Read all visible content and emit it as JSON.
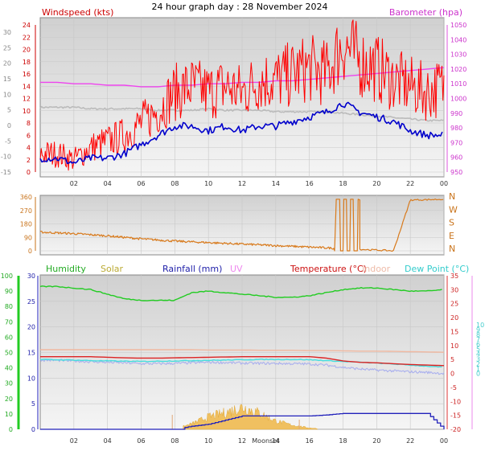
{
  "title": "24 hour graph day : 28 November 2024",
  "x_ticks": [
    "02",
    "04",
    "06",
    "08",
    "10",
    "12",
    "14",
    "16",
    "18",
    "20",
    "22",
    "00"
  ],
  "colors": {
    "wind": "#ff0000",
    "wind_avg": "#0000cc",
    "baro": "#ee44ee",
    "gray_series": "#bbbbbb",
    "dir": "#d87a1c",
    "humidity": "#22cc22",
    "solar": "#ccaa22",
    "rain": "#2222bb",
    "uv": "#ee88ee",
    "temp": "#dd2222",
    "indoor": "#f0b8a0",
    "dewpoint": "#44dddd",
    "lavender": "#aab0ee"
  },
  "chart_data": [
    {
      "type": "line",
      "title": "",
      "series": [
        {
          "name": "Windspeed (kts)",
          "axis": "left"
        },
        {
          "name": "Barometer (hpa)",
          "axis": "right"
        }
      ],
      "x_hours": [
        0,
        1,
        2,
        3,
        4,
        5,
        6,
        7,
        8,
        9,
        10,
        11,
        12,
        13,
        14,
        15,
        16,
        17,
        18,
        19,
        20,
        21,
        22,
        23,
        24
      ],
      "gust": [
        3,
        3,
        2,
        4,
        5,
        6,
        8,
        10,
        13,
        14,
        13,
        14,
        13,
        15,
        15,
        16,
        17,
        16,
        21,
        18,
        17,
        15,
        14,
        13,
        14
      ],
      "avg": [
        -1,
        -1,
        -2,
        -1,
        -1,
        0,
        2,
        4,
        6,
        6,
        5,
        6,
        5,
        6,
        6,
        7,
        8,
        9,
        11,
        9,
        8,
        7,
        5,
        4,
        4
      ],
      "baro": [
        1011,
        1011,
        1010,
        1010,
        1009,
        1009,
        1008,
        1008,
        1009,
        1009,
        1010,
        1010,
        1011,
        1011,
        1012,
        1012,
        1013,
        1014,
        1015,
        1016,
        1017,
        1018,
        1019,
        1020,
        1021
      ],
      "gray": [
        994,
        994,
        994,
        993,
        993,
        993,
        993,
        992,
        992,
        992,
        993,
        992,
        992,
        992,
        991,
        991,
        991,
        991,
        990,
        989,
        988,
        987,
        986,
        985,
        985
      ],
      "left_ticks": [
        24,
        22,
        20,
        18,
        16,
        14,
        12,
        10,
        8,
        6,
        4,
        2,
        0
      ],
      "outer_left_ticks": [
        30,
        25,
        20,
        15,
        10,
        5,
        0,
        -5,
        -10,
        -15
      ],
      "right_ticks": [
        1050,
        1040,
        1030,
        1020,
        1010,
        1000,
        990,
        980,
        970,
        960,
        950
      ],
      "label_left": "Windspeed (kts)",
      "label_right": "Barometer (hpa)"
    },
    {
      "type": "line",
      "title": "",
      "series": [
        {
          "name": "Wind Direction"
        }
      ],
      "x_hours": [
        0,
        2,
        4,
        6,
        8,
        10,
        12,
        14,
        16,
        17,
        18,
        19,
        20,
        21,
        22,
        23,
        24
      ],
      "dir": [
        125,
        115,
        100,
        80,
        65,
        55,
        45,
        35,
        25,
        20,
        15,
        10,
        5,
        0,
        340,
        342,
        345
      ],
      "left_ticks": [
        360,
        270,
        180,
        90,
        0
      ],
      "right_labels": [
        "N",
        "W",
        "S",
        "E",
        "N"
      ]
    },
    {
      "type": "line",
      "title": "",
      "legend": [
        "Humidity",
        "Solar",
        "Rainfall (mm)",
        "UV",
        "Temperature (°C)",
        "Indoor",
        "Dew Point (°C)"
      ],
      "x_hours": [
        0,
        1,
        2,
        3,
        4,
        5,
        6,
        7,
        8,
        9,
        10,
        11,
        12,
        13,
        14,
        15,
        16,
        17,
        18,
        19,
        20,
        21,
        22,
        23,
        24
      ],
      "humidity": [
        93,
        93,
        92,
        91,
        88,
        85,
        84,
        84,
        84,
        89,
        90,
        89,
        88,
        87,
        86,
        86,
        87,
        89,
        91,
        92,
        92,
        91,
        90,
        90,
        91
      ],
      "temp": [
        6,
        6,
        6,
        6,
        5.8,
        5.6,
        5.5,
        5.5,
        5.6,
        5.7,
        5.8,
        5.9,
        6,
        6,
        6,
        6,
        6,
        5.5,
        4.5,
        4,
        3.8,
        3.5,
        3.2,
        3,
        2.8
      ],
      "dewpoint": [
        5,
        4.9,
        4.8,
        4.6,
        4.5,
        4.4,
        4.3,
        4.4,
        4.5,
        4.6,
        4.7,
        4.8,
        4.9,
        5,
        5,
        5,
        4.9,
        4.6,
        4.3,
        4,
        3.7,
        3.4,
        3,
        2.6,
        2.2
      ],
      "lavender": [
        4.8,
        4.7,
        4.5,
        4.2,
        4,
        3.8,
        3.5,
        3.5,
        3.6,
        3.8,
        4,
        3.9,
        3.7,
        3.6,
        3.6,
        3.5,
        3.4,
        3,
        2.2,
        1.6,
        1.2,
        0.9,
        0.6,
        0.4,
        0
      ],
      "indoor": [
        8.5,
        8.5,
        8.5,
        8.5,
        8.5,
        8.5,
        8.5,
        8.5,
        8.5,
        8.5,
        8.4,
        8.4,
        8.4,
        8.3,
        8.3,
        8.3,
        8.2,
        8.2,
        8.1,
        8,
        8,
        7.9,
        7.8,
        7.7,
        7.6
      ],
      "rain_mm": [
        0,
        0,
        0,
        0,
        0,
        0,
        0,
        0,
        0,
        0.6,
        1.0,
        1.8,
        2.6,
        2.6,
        2.6,
        2.6,
        2.6,
        2.8,
        3.1,
        3.1,
        3.1,
        3.1,
        3.1,
        3.1,
        0
      ],
      "solar_pct": [
        0,
        0,
        0,
        0,
        0,
        0,
        0,
        0,
        0,
        4,
        9,
        12,
        16,
        12,
        6,
        3,
        1,
        0,
        0,
        0,
        0,
        0,
        0,
        0,
        0
      ],
      "left_ticks_rain": [
        30,
        25,
        20,
        15,
        10,
        5,
        0
      ],
      "humidity_ticks": [
        100,
        90,
        80,
        70,
        60,
        50,
        40,
        30,
        20,
        10,
        0
      ],
      "right_ticks": [
        35,
        30,
        25,
        20,
        15,
        10,
        5,
        0,
        -5,
        -10,
        -15,
        -20
      ],
      "dewpoint_ticks": [
        10,
        9,
        8,
        7,
        6,
        5,
        4,
        3,
        2,
        1,
        0
      ],
      "moon_labels": [
        "Moonset"
      ]
    }
  ]
}
